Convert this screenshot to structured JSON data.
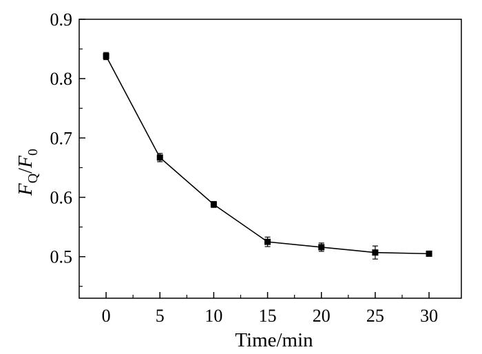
{
  "chart_data": {
    "type": "line",
    "xlabel": "Time/min",
    "ylabel": {
      "main_1": "F",
      "sub_1": "Q",
      "slash": "/",
      "main_2": "F",
      "sub_2": "0"
    },
    "xlim": [
      -2.5,
      33
    ],
    "ylim": [
      0.43,
      0.9
    ],
    "x_ticks": [
      0,
      5,
      10,
      15,
      20,
      25,
      30
    ],
    "y_ticks": [
      0.5,
      0.6,
      0.7,
      0.8,
      0.9
    ],
    "x_tick_labels": [
      "0",
      "5",
      "10",
      "15",
      "20",
      "25",
      "30"
    ],
    "y_tick_labels": [
      "0.5",
      "0.6",
      "0.7",
      "0.8",
      "0.9"
    ],
    "grid": false,
    "legend": "none",
    "series": [
      {
        "x": [
          0,
          5,
          10,
          15,
          20,
          25,
          30
        ],
        "y": [
          0.838,
          0.667,
          0.588,
          0.525,
          0.516,
          0.507,
          0.505
        ],
        "error": [
          0.006,
          0.007,
          0.005,
          0.008,
          0.007,
          0.011,
          0.004
        ],
        "marker": "square",
        "color": "#000000"
      }
    ]
  }
}
